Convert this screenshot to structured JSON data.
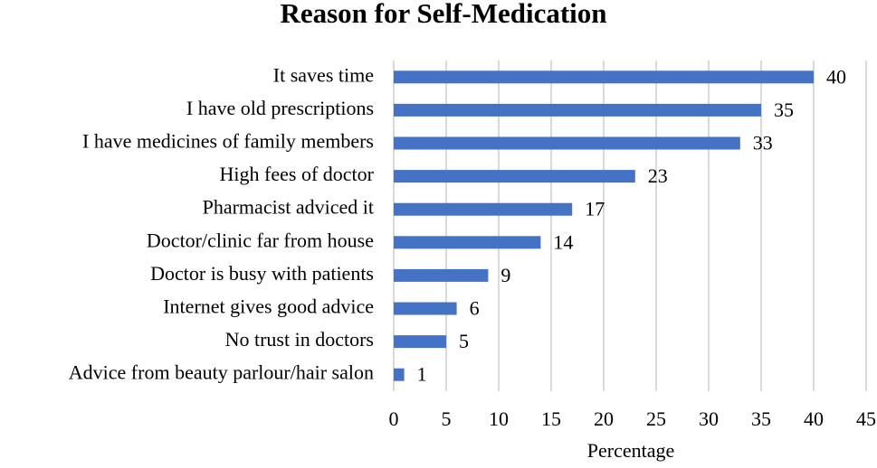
{
  "chart_data": {
    "type": "bar",
    "orientation": "horizontal",
    "title": "Reason for Self-Medication",
    "x_label": "Percentage",
    "categories": [
      "It saves time",
      "I have old prescriptions",
      "I have medicines of family members",
      "High fees of doctor",
      "Pharmacist adviced it",
      "Doctor/clinic far from house",
      "Doctor is busy with patients",
      "Internet gives good advice",
      "No trust in doctors",
      "Advice from beauty parlour/hair salon"
    ],
    "values": [
      40,
      35,
      33,
      23,
      17,
      14,
      9,
      6,
      5,
      1
    ],
    "color": "#4472c4",
    "xlim": [
      0,
      45
    ],
    "xticks": [
      0,
      5,
      10,
      15,
      20,
      25,
      30,
      35,
      40,
      45
    ],
    "grid": true
  }
}
